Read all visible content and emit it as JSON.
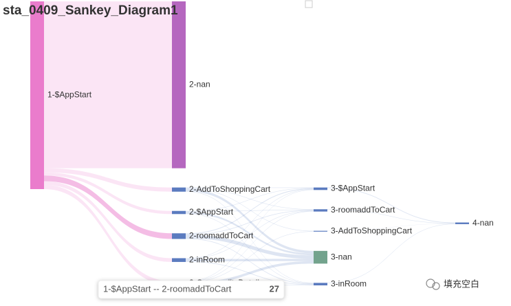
{
  "chart_data": {
    "type": "sankey",
    "title": "sta_0409_Sankey_Diagram1",
    "nodes": [
      {
        "name": "1-$AppStart",
        "color": "#ea7ccc"
      },
      {
        "name": "2-nan",
        "color": "#b567bf"
      },
      {
        "name": "2-AddToShoppingCart",
        "color": "#5b7bbf"
      },
      {
        "name": "2-$AppStart",
        "color": "#5b7bbf"
      },
      {
        "name": "2-roomaddToCart",
        "color": "#5b7bbf"
      },
      {
        "name": "2-inRoom",
        "color": "#5b7bbf"
      },
      {
        "name": "2-CommodityDetail",
        "color": "#5b7bbf"
      },
      {
        "name": "3-nan",
        "color": "#73a38d"
      },
      {
        "name": "3-AddToShoppingCart",
        "color": "#5b7bbf"
      },
      {
        "name": "3-inRoom",
        "color": "#5b7bbf"
      },
      {
        "name": "3-$AppStart",
        "color": "#5b7bbf"
      },
      {
        "name": "3-roomaddToCart",
        "color": "#5b7bbf"
      },
      {
        "name": "4-nan",
        "color": "#5b7bbf"
      }
    ],
    "links": [
      {
        "source": "1-$AppStart",
        "target": "2-nan",
        "value": 800
      },
      {
        "source": "1-$AppStart",
        "target": "2-AddToShoppingCart",
        "value": 20
      },
      {
        "source": "1-$AppStart",
        "target": "2-$AppStart",
        "value": 15
      },
      {
        "source": "1-$AppStart",
        "target": "2-roomaddToCart",
        "value": 27
      },
      {
        "source": "1-$AppStart",
        "target": "2-inRoom",
        "value": 18
      },
      {
        "source": "1-$AppStart",
        "target": "2-CommodityDetail",
        "value": 20
      },
      {
        "source": "2-AddToShoppingCart",
        "target": "3-nan",
        "value": 12
      },
      {
        "source": "2-AddToShoppingCart",
        "target": "3-AddToShoppingCart",
        "value": 2
      },
      {
        "source": "2-AddToShoppingCart",
        "target": "3-inRoom",
        "value": 2
      },
      {
        "source": "2-AddToShoppingCart",
        "target": "3-$AppStart",
        "value": 2
      },
      {
        "source": "2-AddToShoppingCart",
        "target": "3-roomaddToCart",
        "value": 2
      },
      {
        "source": "2-$AppStart",
        "target": "3-nan",
        "value": 9
      },
      {
        "source": "2-$AppStart",
        "target": "3-inRoom",
        "value": 2
      },
      {
        "source": "2-$AppStart",
        "target": "3-$AppStart",
        "value": 2
      },
      {
        "source": "2-$AppStart",
        "target": "3-roomaddToCart",
        "value": 2
      },
      {
        "source": "2-roomaddToCart",
        "target": "3-nan",
        "value": 17
      },
      {
        "source": "2-roomaddToCart",
        "target": "3-inRoom",
        "value": 3
      },
      {
        "source": "2-roomaddToCart",
        "target": "3-$AppStart",
        "value": 4
      },
      {
        "source": "2-roomaddToCart",
        "target": "3-roomaddToCart",
        "value": 3
      },
      {
        "source": "2-inRoom",
        "target": "3-nan",
        "value": 11
      },
      {
        "source": "2-inRoom",
        "target": "3-inRoom",
        "value": 3
      },
      {
        "source": "2-inRoom",
        "target": "3-$AppStart",
        "value": 2
      },
      {
        "source": "2-inRoom",
        "target": "3-roomaddToCart",
        "value": 2
      },
      {
        "source": "2-CommodityDetail",
        "target": "3-nan",
        "value": 12
      },
      {
        "source": "2-CommodityDetail",
        "target": "3-AddToShoppingCart",
        "value": 2
      },
      {
        "source": "2-CommodityDetail",
        "target": "3-inRoom",
        "value": 2
      },
      {
        "source": "2-CommodityDetail",
        "target": "3-$AppStart",
        "value": 2
      },
      {
        "source": "2-CommodityDetail",
        "target": "3-roomaddToCart",
        "value": 2
      },
      {
        "source": "3-AddToShoppingCart",
        "target": "4-nan",
        "value": 1
      },
      {
        "source": "3-inRoom",
        "target": "4-nan",
        "value": 2
      },
      {
        "source": "3-$AppStart",
        "target": "4-nan",
        "value": 3
      },
      {
        "source": "3-roomaddToCart",
        "target": "4-nan",
        "value": 2
      }
    ],
    "tooltip": {
      "text": "1-$AppStart -- 2-roomaddToCart"
    },
    "watermark": "填充空白"
  }
}
